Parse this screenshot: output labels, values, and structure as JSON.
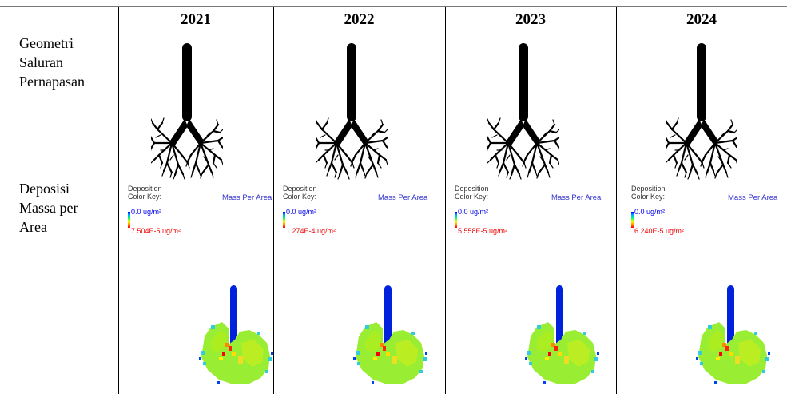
{
  "header": {
    "years": [
      "2021",
      "2022",
      "2023",
      "2024"
    ]
  },
  "rows": {
    "geometry_label": [
      "Geometri",
      "Saluran",
      "Pernapasan"
    ],
    "deposition_label": [
      "Deposisi",
      "Massa per",
      "Area"
    ]
  },
  "color_key": {
    "title_line1": "Deposition",
    "title_line2": "Color Key:",
    "mass_label": "Mass Per Area",
    "min_label": "0.0 ug/m²",
    "max_labels": [
      "7.504E-5 ug/m²",
      "1.274E-4 ug/m²",
      "5.558E-5 ug/m²",
      "6.240E-5 ug/m²"
    ]
  },
  "colors": {
    "min": "#0000ee",
    "max": "#ee0000",
    "mass_label": "#3333cc",
    "deposit_fill": "#99ee33",
    "trachea_deposit": "#0022dd"
  }
}
